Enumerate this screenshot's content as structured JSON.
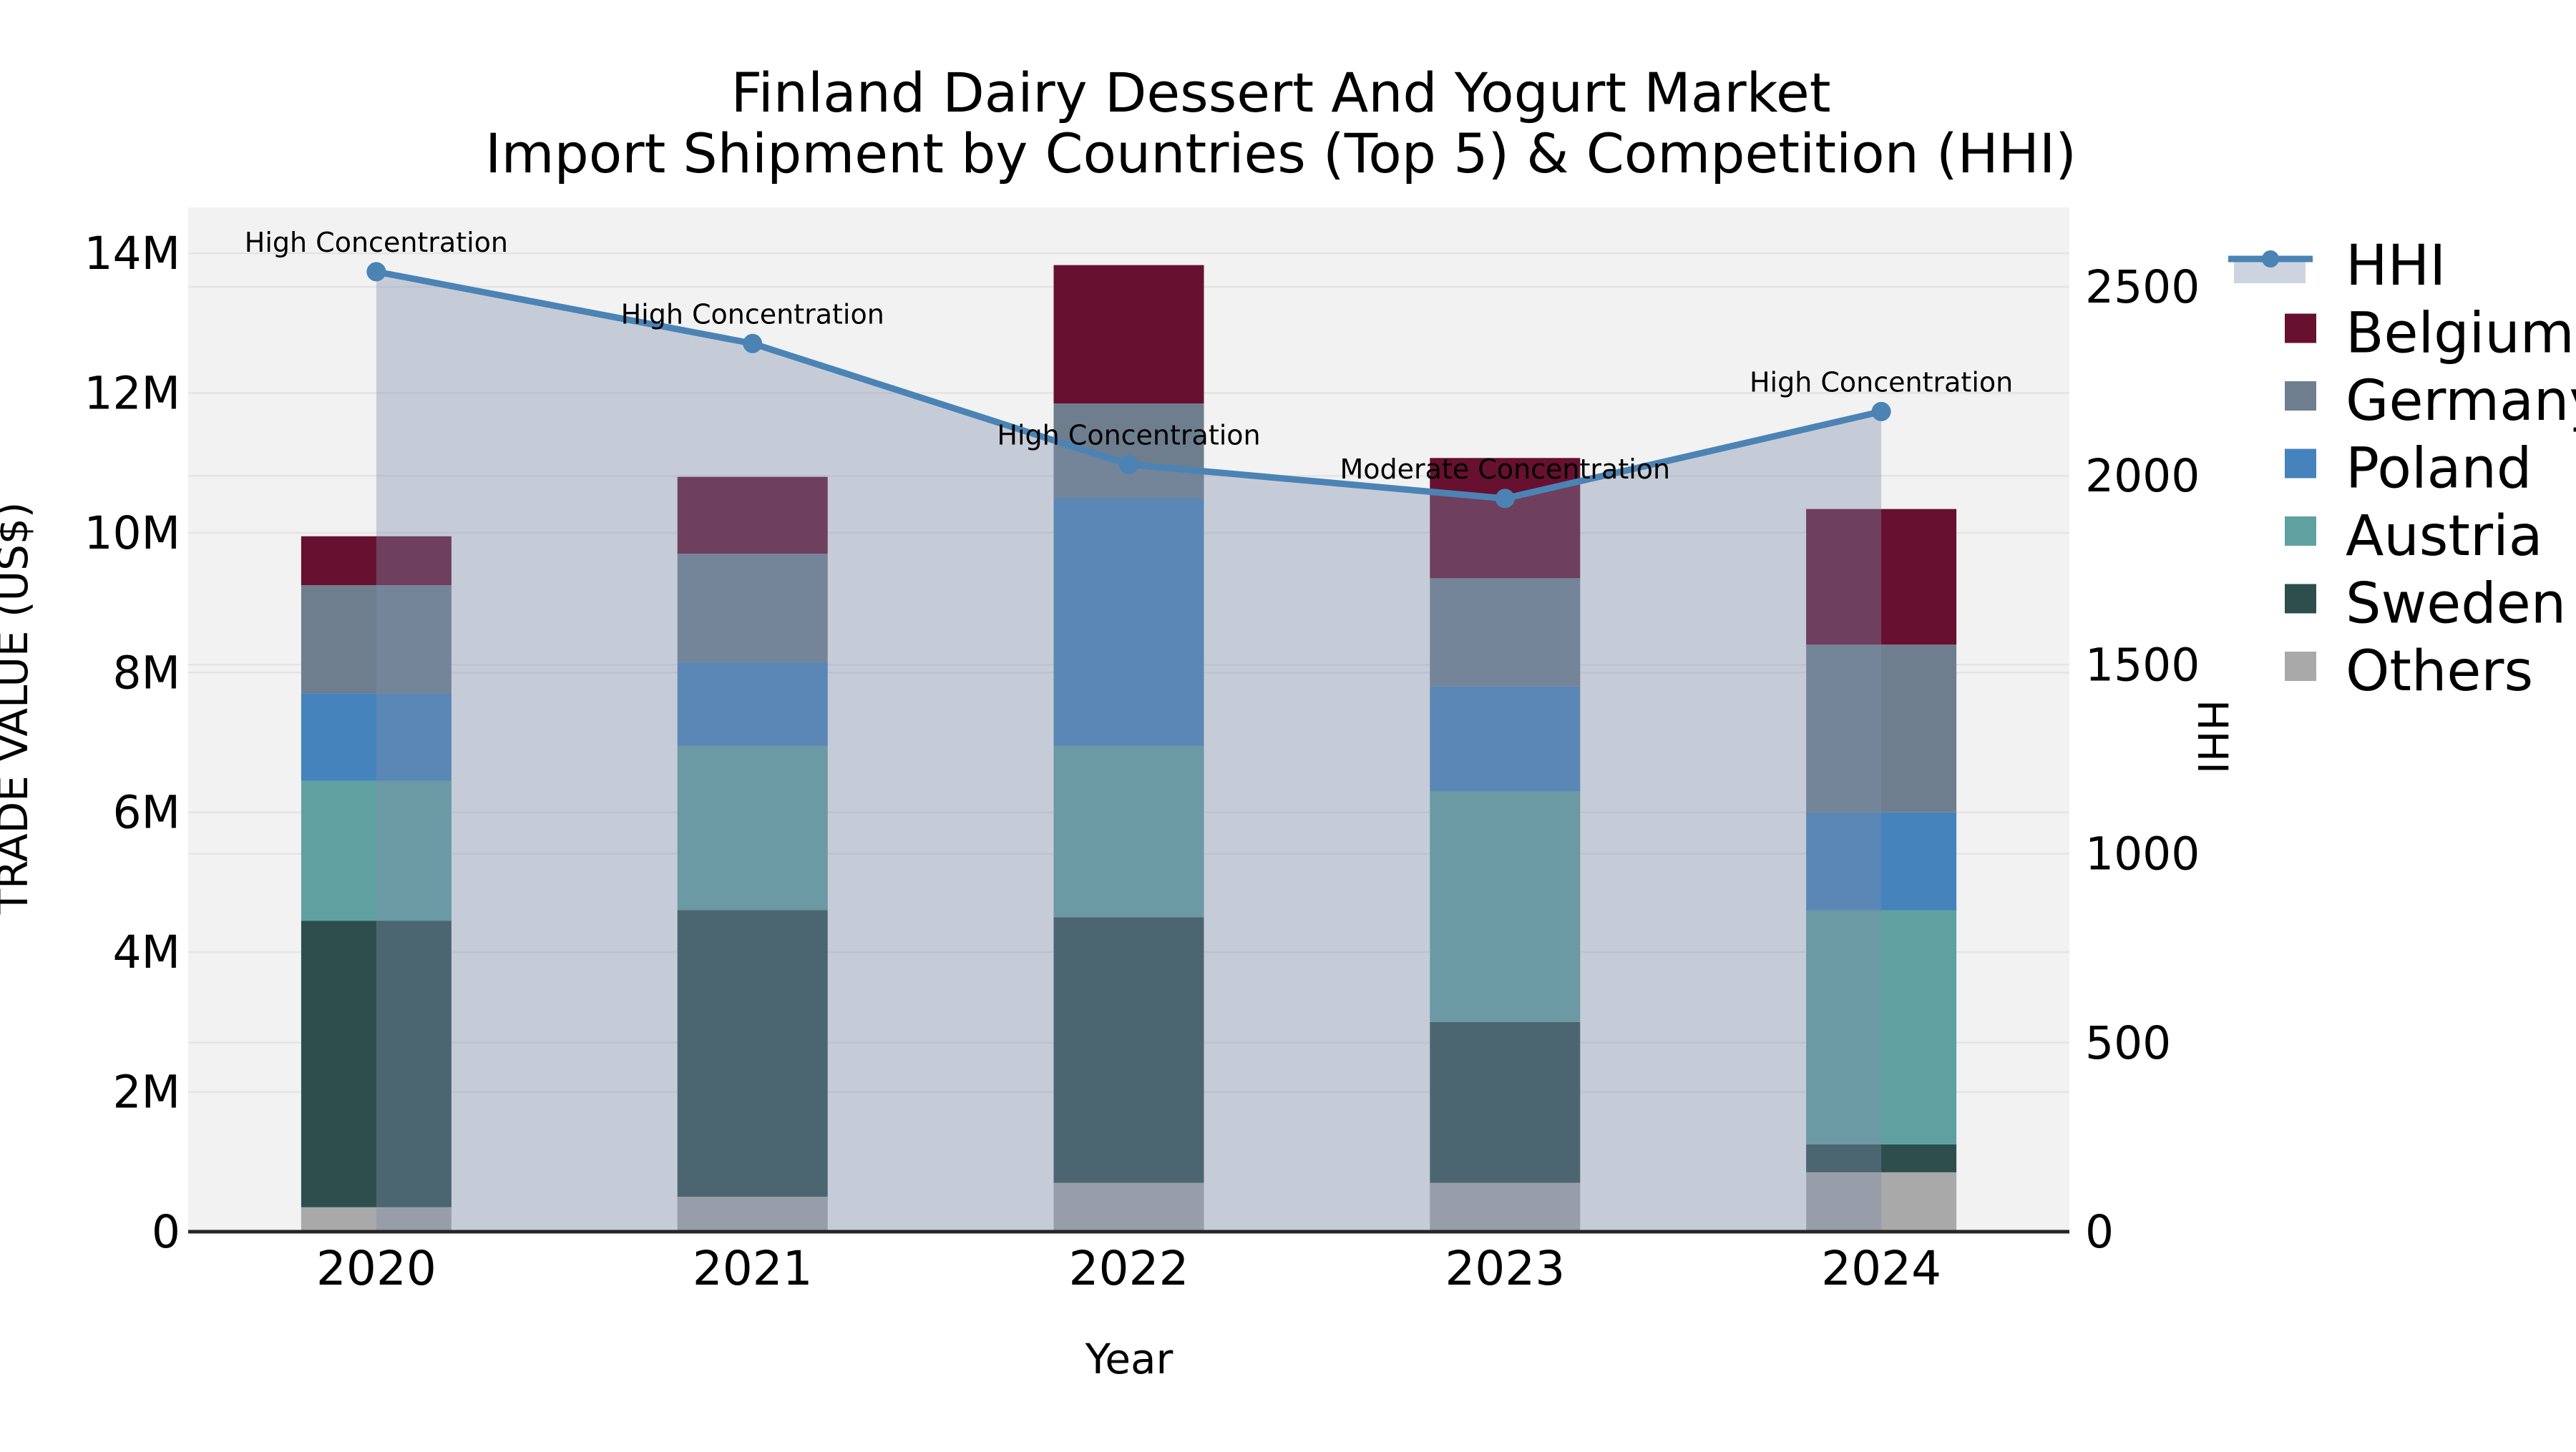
{
  "chart_data": {
    "type": "combo_stacked_bar_line",
    "title": "Finland Dairy Dessert And Yogurt Market",
    "subtitle": "Import Shipment by Countries (Top 5) & Competition (HHI)",
    "xlabel": "Year",
    "ylabel_left": "TRADE VALUE (US$)",
    "ylabel_right": "HHI",
    "categories": [
      "2020",
      "2021",
      "2022",
      "2023",
      "2024"
    ],
    "bar_value_unit": "millions of US$",
    "stack_order_bottom_to_top": [
      "Others",
      "Sweden",
      "Austria",
      "Poland",
      "Germany",
      "Belgium"
    ],
    "series": [
      {
        "name": "Belgium",
        "color": "#67102f",
        "values": [
          0.7,
          1.1,
          1.98,
          1.72,
          1.94
        ]
      },
      {
        "name": "Germany",
        "color": "#6e7e8e",
        "values": [
          1.55,
          1.55,
          1.35,
          1.55,
          2.4
        ]
      },
      {
        "name": "Poland",
        "color": "#4483bb",
        "values": [
          1.25,
          1.2,
          3.55,
          1.5,
          1.4
        ]
      },
      {
        "name": "Austria",
        "color": "#5fa1a1",
        "values": [
          2.0,
          2.35,
          2.45,
          3.3,
          3.35
        ]
      },
      {
        "name": "Sweden",
        "color": "#2e4e4e",
        "values": [
          4.1,
          4.1,
          3.8,
          2.3,
          0.4
        ]
      },
      {
        "name": "Others",
        "color": "#a9a9a9",
        "values": [
          0.35,
          0.5,
          0.7,
          0.7,
          0.85
        ]
      }
    ],
    "bar_totals": [
      9.95,
      10.8,
      13.83,
      11.07,
      10.34
    ],
    "line_series": {
      "name": "HHI",
      "color": "#4b83b5",
      "area_fill": "rgba(127,143,170,0.38)",
      "values": [
        2540,
        2350,
        2030,
        1940,
        2170
      ]
    },
    "annotations": [
      {
        "category": "2020",
        "text": "High Concentration"
      },
      {
        "category": "2021",
        "text": "High Concentration"
      },
      {
        "category": "2022",
        "text": "High Concentration"
      },
      {
        "category": "2023",
        "text": "Moderate Concentration"
      },
      {
        "category": "2024",
        "text": "High Concentration"
      }
    ],
    "y_left_axis": {
      "tick_labels": [
        "0",
        "2M",
        "4M",
        "6M",
        "8M",
        "10M",
        "12M",
        "14M"
      ],
      "tick_values": [
        0,
        2,
        4,
        6,
        8,
        10,
        12,
        14
      ],
      "range_max": 14
    },
    "y_right_axis": {
      "tick_labels": [
        "0",
        "500",
        "1000",
        "1500",
        "2000",
        "2500"
      ],
      "tick_values": [
        0,
        500,
        1000,
        1500,
        2000,
        2500
      ],
      "range_max": 2500
    },
    "legend": {
      "position": "right",
      "entries": [
        {
          "label": "HHI",
          "type": "line"
        },
        {
          "label": "Belgium",
          "type": "patch"
        },
        {
          "label": "Germany",
          "type": "patch"
        },
        {
          "label": "Poland",
          "type": "patch"
        },
        {
          "label": "Austria",
          "type": "patch"
        },
        {
          "label": "Sweden",
          "type": "patch"
        },
        {
          "label": "Others",
          "type": "patch"
        }
      ]
    },
    "style": {
      "plot_background": "#f2f2f2",
      "figure_background": "#ffffff",
      "grid_color": "#e4e4e4",
      "axis_line_color": "#262626",
      "text_color": "#000000"
    }
  }
}
